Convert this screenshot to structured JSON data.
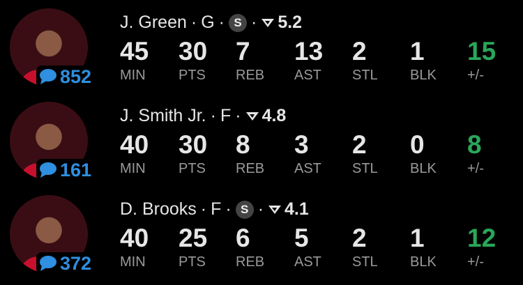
{
  "players": [
    {
      "name": "J. Green",
      "position": "G",
      "starter_badge": "S",
      "rating": "5.2",
      "comments": "852",
      "stats": [
        "45",
        "30",
        "7",
        "13",
        "2",
        "1",
        "15"
      ]
    },
    {
      "name": "J. Smith Jr.",
      "position": "F",
      "starter_badge": "",
      "rating": "4.8",
      "comments": "161",
      "stats": [
        "40",
        "30",
        "8",
        "3",
        "2",
        "0",
        "8"
      ]
    },
    {
      "name": "D. Brooks",
      "position": "F",
      "starter_badge": "S",
      "rating": "4.1",
      "comments": "372",
      "stats": [
        "40",
        "25",
        "6",
        "5",
        "2",
        "1",
        "12"
      ]
    }
  ],
  "labels": [
    "MIN",
    "PTS",
    "REB",
    "AST",
    "STL",
    "BLK",
    "+/-"
  ],
  "separator": "·",
  "colors": {
    "plus_minus": "#2aa65a",
    "comments": "#2f8fe0",
    "jersey": "#c8102e"
  }
}
